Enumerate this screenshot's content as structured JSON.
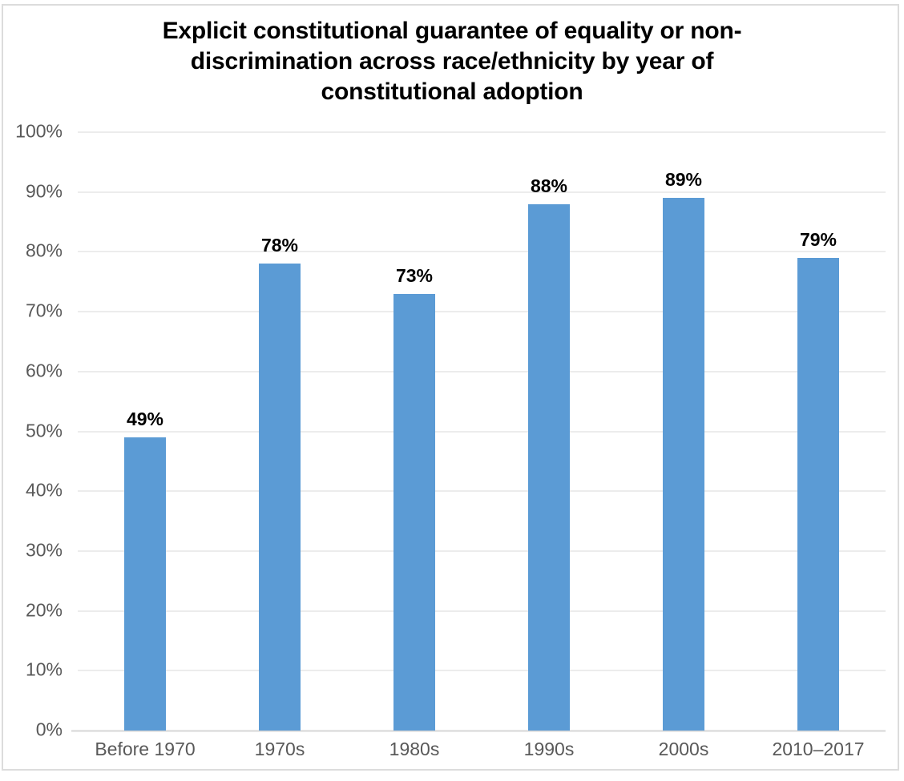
{
  "chart_data": {
    "type": "bar",
    "title": "Explicit constitutional guarantee of equality or non-discrimination across race/ethnicity by year of constitutional adoption",
    "categories": [
      "Before 1970",
      "1970s",
      "1980s",
      "1990s",
      "2000s",
      "2010–2017"
    ],
    "values": [
      49,
      78,
      73,
      88,
      89,
      79
    ],
    "value_labels": [
      "49%",
      "78%",
      "73%",
      "88%",
      "89%",
      "79%"
    ],
    "xlabel": "",
    "ylabel": "",
    "ylim": [
      0,
      100
    ],
    "grid": true,
    "legend": "none",
    "y_axis": {
      "min": 0,
      "max": 100,
      "ticks": [
        {
          "value": 100,
          "label": "100%"
        },
        {
          "value": 90,
          "label": "90%"
        },
        {
          "value": 80,
          "label": "80%"
        },
        {
          "value": 70,
          "label": "70%"
        },
        {
          "value": 60,
          "label": "60%"
        },
        {
          "value": 50,
          "label": "50%"
        },
        {
          "value": 40,
          "label": "40%"
        },
        {
          "value": 30,
          "label": "30%"
        },
        {
          "value": 20,
          "label": "20%"
        },
        {
          "value": 10,
          "label": "10%"
        },
        {
          "value": 0,
          "label": "0%"
        }
      ]
    },
    "colors": {
      "bar": "#5b9bd5",
      "tick_text": "#595959",
      "gridline": "#d9d9d9",
      "title_text": "#000000",
      "value_label_text": "#000000"
    }
  }
}
